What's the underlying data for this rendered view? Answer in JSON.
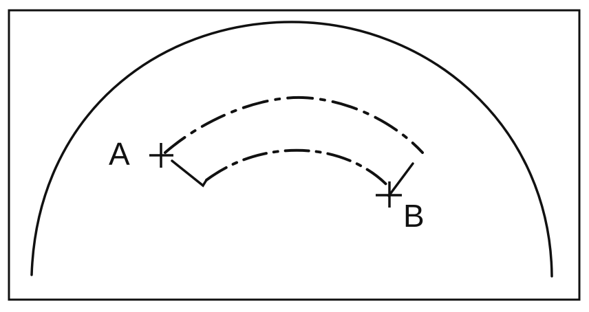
{
  "points": {
    "a": {
      "label": "A"
    },
    "b": {
      "label": "B"
    }
  },
  "colors": {
    "ink": "#111111",
    "frame": "#111111",
    "background": "#ffffff"
  }
}
